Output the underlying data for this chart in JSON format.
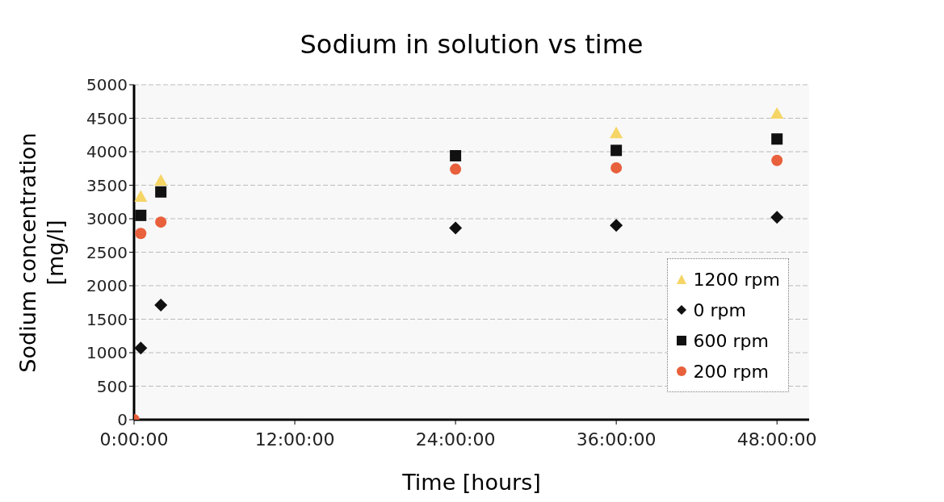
{
  "chart_data": {
    "type": "scatter",
    "title": "Sodium in solution vs time",
    "xlabel": "Time [hours]",
    "ylabel": "Sodium concentration [mg/l]",
    "x": [
      0,
      0.5,
      2,
      24,
      36,
      48
    ],
    "series": [
      {
        "name": "1200 rpm",
        "color": "#f5d565",
        "marker": "triangle",
        "values": [
          null,
          3330,
          3570,
          null,
          4280,
          4570
        ]
      },
      {
        "name": "0 rpm",
        "color": "#111111",
        "marker": "diamond",
        "values": [
          null,
          1070,
          1710,
          2860,
          2900,
          3020
        ]
      },
      {
        "name": "600 rpm",
        "color": "#111111",
        "marker": "square",
        "values": [
          null,
          3050,
          3400,
          3940,
          4020,
          4190
        ]
      },
      {
        "name": "200 rpm",
        "color": "#e8603c",
        "marker": "circle",
        "values": [
          0,
          2780,
          2950,
          3740,
          3760,
          3870
        ]
      }
    ],
    "xlim": [
      0,
      50.4
    ],
    "xticks": [
      {
        "value": 0,
        "label": "0:00:00"
      },
      {
        "value": 12,
        "label": "12:00:00"
      },
      {
        "value": 24,
        "label": "24:00:00"
      },
      {
        "value": 36,
        "label": "36:00:00"
      },
      {
        "value": 48,
        "label": "48:00:00"
      }
    ],
    "ylim": [
      0,
      5000
    ],
    "yticks": [
      0,
      500,
      1000,
      1500,
      2000,
      2500,
      3000,
      3500,
      4000,
      4500,
      5000
    ],
    "grid": "y",
    "legend": "right"
  }
}
